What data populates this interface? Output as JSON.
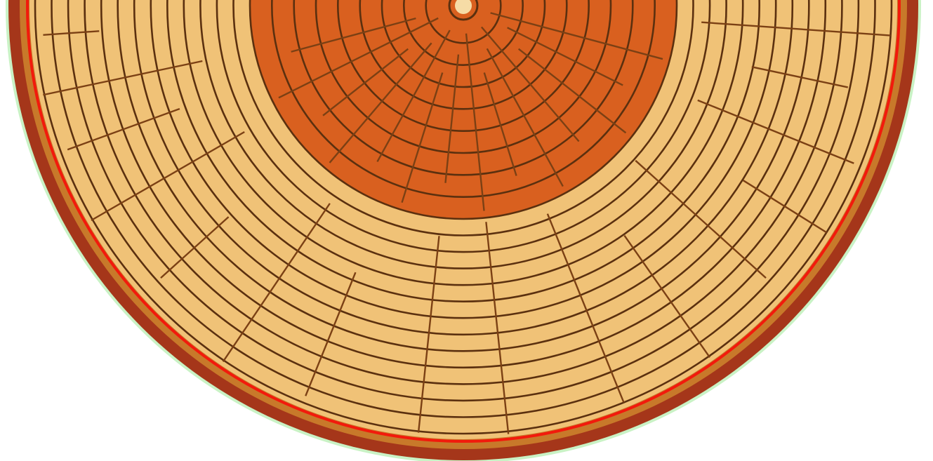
{
  "diagram": {
    "subject": "tree-trunk-cross-section",
    "colors": {
      "background": "#ffffff",
      "bark_outer": "#a5361a",
      "bark_inner": "#c8792a",
      "cambium": "#f21a0c",
      "sapwood": "#f0c277",
      "heartwood": "#d9601f",
      "ring_line": "#5b300f",
      "ray_line": "#7b4014",
      "pith": "#f6dca6",
      "halo": "#c9f2c5"
    },
    "growth_ring_count": 22,
    "heartwood_ring_count": 9,
    "ray_count_sapwood": 16,
    "ray_count_heartwood": 14
  }
}
